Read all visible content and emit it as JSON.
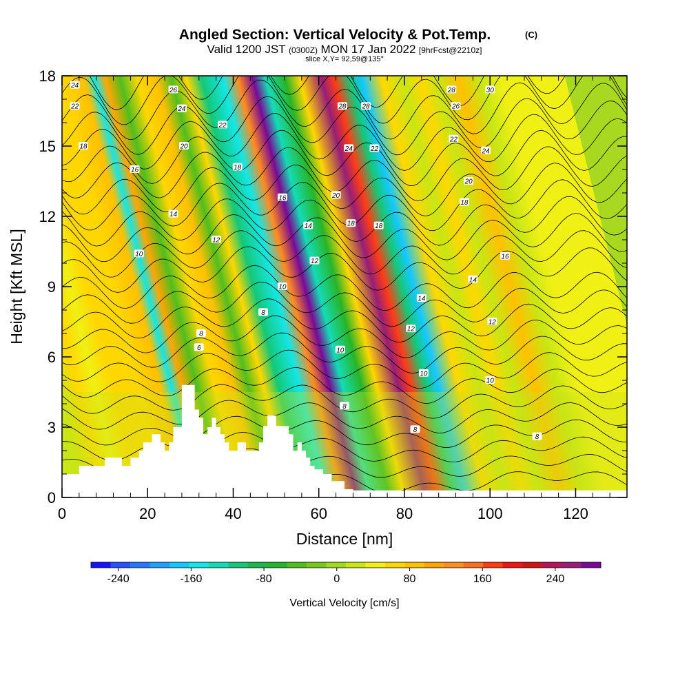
{
  "chart_data": {
    "type": "heatmap",
    "title": "Angled Section: Vertical Velocity & Pot.Temp.",
    "title_mark": "(C)",
    "subtitle_main": "Valid 1200 JST",
    "subtitle_utc": "(0300Z)",
    "subtitle_date": "MON 17 Jan 2022",
    "subtitle_fcst": "[9hrFcst@2210z]",
    "slice_info": "slice X,Y= 92,59@135°",
    "xlabel": "Distance [nm]",
    "ylabel": "Height [Kft MSL]",
    "xlim": [
      0,
      132
    ],
    "ylim": [
      0,
      18
    ],
    "x_ticks": [
      "0",
      "20",
      "40",
      "60",
      "80",
      "100",
      "120"
    ],
    "y_ticks": [
      "0",
      "3",
      "6",
      "9",
      "12",
      "15",
      "18"
    ],
    "colorbar": {
      "label": "Vertical Velocity [cm/s]",
      "ticks": [
        "-240",
        "-160",
        "-80",
        "0",
        "80",
        "160",
        "240"
      ],
      "range": [
        -270,
        290
      ],
      "colors": [
        "#1414ff",
        "#2850ff",
        "#2878ff",
        "#1ea0ff",
        "#14c8ff",
        "#14e6e6",
        "#14dcb4",
        "#14c878",
        "#1eb450",
        "#28b428",
        "#50be1e",
        "#78c81e",
        "#a0dc1e",
        "#c8e614",
        "#f0f014",
        "#ffd700",
        "#ffc000",
        "#ffa500",
        "#ff8c1e",
        "#ff6e1e",
        "#ff3c14",
        "#f01414",
        "#d21414",
        "#b4145a",
        "#961e78",
        "#780a96"
      ]
    },
    "terrain_profile": {
      "x": [
        0,
        4,
        4,
        10,
        10,
        14,
        14,
        16,
        16,
        18,
        18,
        19,
        19,
        21,
        21,
        23,
        23,
        24,
        24,
        25,
        25,
        26,
        26,
        28,
        28,
        31,
        31,
        32,
        32,
        33,
        33,
        34,
        34,
        35,
        35,
        36,
        36,
        37,
        37,
        38,
        38,
        39,
        39,
        41,
        41,
        43,
        43,
        46,
        46,
        47,
        47,
        48,
        48,
        50,
        50,
        53,
        53,
        54,
        54,
        55,
        55,
        56,
        56,
        57,
        57,
        58,
        58,
        59,
        59,
        61,
        61,
        63,
        63,
        66,
        66,
        68,
        68,
        72,
        72,
        132
      ],
      "y": [
        1,
        1,
        1.35,
        1.35,
        1.7,
        1.7,
        1.35,
        1.35,
        1.7,
        1.7,
        2.0,
        2.0,
        2.35,
        2.35,
        2.7,
        2.7,
        2.35,
        2.35,
        2.0,
        2.0,
        2.35,
        2.35,
        3.0,
        3.0,
        4.8,
        4.8,
        3.75,
        3.75,
        3.4,
        3.4,
        2.7,
        2.7,
        3.0,
        3.0,
        3.4,
        3.4,
        3.0,
        3.0,
        2.7,
        2.7,
        2.35,
        2.35,
        2.0,
        2.0,
        2.35,
        2.35,
        2.0,
        2.0,
        2.35,
        2.35,
        3.05,
        3.05,
        3.5,
        3.5,
        3.05,
        3.05,
        2.7,
        2.7,
        2.0,
        2.0,
        2.35,
        2.35,
        2.0,
        2.0,
        1.7,
        1.7,
        1.35,
        1.35,
        1.2,
        1.2,
        1.0,
        1.0,
        0.7,
        0.7,
        0.35,
        0.35,
        0.3,
        0.3,
        0.3,
        0.3
      ]
    },
    "velocity_bands": [
      {
        "x": 5,
        "v": 30
      },
      {
        "x": 10,
        "v": 55
      },
      {
        "x": 14,
        "v": 50
      },
      {
        "x": 18,
        "v": 60
      },
      {
        "x": 24,
        "v": 55
      },
      {
        "x": 29.5,
        "v": 95
      },
      {
        "x": 32,
        "v": -160
      },
      {
        "x": 34.5,
        "v": 110
      },
      {
        "x": 38,
        "v": -50
      },
      {
        "x": 42,
        "v": 70
      },
      {
        "x": 46.5,
        "v": 95
      },
      {
        "x": 50,
        "v": -40
      },
      {
        "x": 53.5,
        "v": 60
      },
      {
        "x": 57,
        "v": -110
      },
      {
        "x": 62,
        "v": -150
      },
      {
        "x": 65.5,
        "v": 120
      },
      {
        "x": 69,
        "v": 270
      },
      {
        "x": 72,
        "v": -130
      },
      {
        "x": 76.5,
        "v": -60
      },
      {
        "x": 80,
        "v": 60
      },
      {
        "x": 85,
        "v": 250
      },
      {
        "x": 88,
        "v": 170
      },
      {
        "x": 91.5,
        "v": -110
      },
      {
        "x": 94.5,
        "v": -170
      },
      {
        "x": 99,
        "v": 60
      },
      {
        "x": 104,
        "v": 10
      },
      {
        "x": 108,
        "v": 70
      },
      {
        "x": 112,
        "v": 30
      },
      {
        "x": 117,
        "v": 80
      },
      {
        "x": 122,
        "v": 20
      },
      {
        "x": 127,
        "v": 40
      }
    ],
    "theta_contour_labels": [
      {
        "x": 3,
        "y": 17.6,
        "t": "24"
      },
      {
        "x": 3,
        "y": 16.7,
        "t": "22"
      },
      {
        "x": 5,
        "y": 15.0,
        "t": "18"
      },
      {
        "x": 17,
        "y": 14.0,
        "t": "16"
      },
      {
        "x": 26,
        "y": 17.4,
        "t": "26"
      },
      {
        "x": 28,
        "y": 16.6,
        "t": "24"
      },
      {
        "x": 37.5,
        "y": 15.9,
        "t": "22"
      },
      {
        "x": 28.5,
        "y": 15.0,
        "t": "20"
      },
      {
        "x": 41,
        "y": 14.1,
        "t": "18"
      },
      {
        "x": 26,
        "y": 12.1,
        "t": "14"
      },
      {
        "x": 36,
        "y": 11.0,
        "t": "12"
      },
      {
        "x": 18,
        "y": 10.4,
        "t": "10"
      },
      {
        "x": 51.5,
        "y": 12.8,
        "t": "16"
      },
      {
        "x": 57.5,
        "y": 11.6,
        "t": "14"
      },
      {
        "x": 59,
        "y": 10.1,
        "t": "12"
      },
      {
        "x": 51.5,
        "y": 9.0,
        "t": "10"
      },
      {
        "x": 47,
        "y": 7.9,
        "t": "8"
      },
      {
        "x": 32.5,
        "y": 7.0,
        "t": "8"
      },
      {
        "x": 32,
        "y": 6.4,
        "t": "6"
      },
      {
        "x": 65.5,
        "y": 16.7,
        "t": "28"
      },
      {
        "x": 71,
        "y": 16.7,
        "t": "28"
      },
      {
        "x": 67,
        "y": 14.9,
        "t": "24"
      },
      {
        "x": 73,
        "y": 14.9,
        "t": "22"
      },
      {
        "x": 64,
        "y": 12.9,
        "t": "20"
      },
      {
        "x": 67.5,
        "y": 11.7,
        "t": "18"
      },
      {
        "x": 74,
        "y": 11.6,
        "t": "18"
      },
      {
        "x": 65,
        "y": 6.3,
        "t": "10"
      },
      {
        "x": 66,
        "y": 3.9,
        "t": "8"
      },
      {
        "x": 84,
        "y": 8.5,
        "t": "14"
      },
      {
        "x": 81.5,
        "y": 7.2,
        "t": "12"
      },
      {
        "x": 84.5,
        "y": 5.3,
        "t": "10"
      },
      {
        "x": 82.5,
        "y": 2.9,
        "t": "8"
      },
      {
        "x": 91,
        "y": 17.4,
        "t": "28"
      },
      {
        "x": 100,
        "y": 17.4,
        "t": "30"
      },
      {
        "x": 92,
        "y": 16.7,
        "t": "26"
      },
      {
        "x": 91.5,
        "y": 15.3,
        "t": "22"
      },
      {
        "x": 99,
        "y": 14.8,
        "t": "24"
      },
      {
        "x": 95,
        "y": 13.5,
        "t": "20"
      },
      {
        "x": 94,
        "y": 12.6,
        "t": "18"
      },
      {
        "x": 103.5,
        "y": 10.3,
        "t": "16"
      },
      {
        "x": 96,
        "y": 9.3,
        "t": "14"
      },
      {
        "x": 100.5,
        "y": 7.5,
        "t": "12"
      },
      {
        "x": 100,
        "y": 5.0,
        "t": "10"
      },
      {
        "x": 111,
        "y": 2.6,
        "t": "8"
      }
    ]
  }
}
